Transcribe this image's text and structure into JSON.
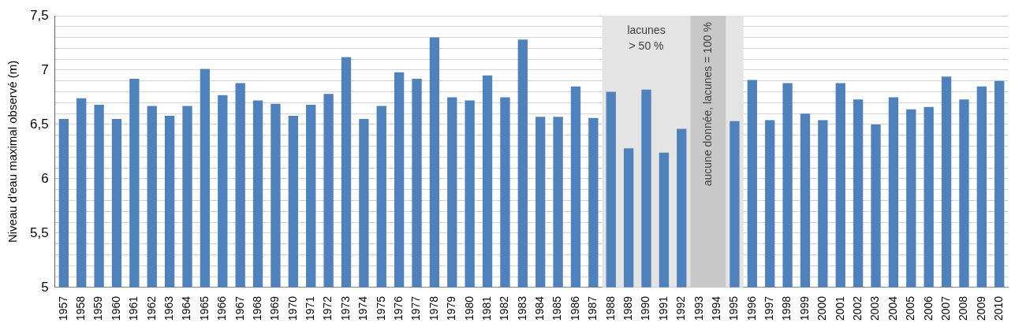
{
  "chart_data": {
    "type": "bar",
    "ylabel": "Niveau d'eau maximal observé (m)",
    "categories": [
      "1957",
      "1958",
      "1959",
      "1960",
      "1961",
      "1962",
      "1963",
      "1964",
      "1965",
      "1966",
      "1967",
      "1968",
      "1969",
      "1970",
      "1971",
      "1972",
      "1973",
      "1974",
      "1975",
      "1976",
      "1977",
      "1978",
      "1979",
      "1980",
      "1981",
      "1982",
      "1983",
      "1984",
      "1985",
      "1986",
      "1987",
      "1988",
      "1989",
      "1990",
      "1991",
      "1992",
      "1993",
      "1994",
      "1995",
      "1996",
      "1997",
      "1998",
      "1999",
      "2000",
      "2001",
      "2002",
      "2003",
      "2004",
      "2005",
      "2006",
      "2007",
      "2008",
      "2009",
      "2010"
    ],
    "values": [
      6.55,
      6.74,
      6.68,
      6.55,
      6.92,
      6.67,
      6.58,
      6.67,
      7.01,
      6.77,
      6.88,
      6.72,
      6.69,
      6.58,
      6.68,
      6.78,
      7.12,
      6.55,
      6.67,
      6.98,
      6.92,
      7.3,
      6.75,
      6.72,
      6.95,
      6.75,
      7.28,
      6.57,
      6.57,
      6.85,
      6.56,
      6.8,
      6.28,
      6.82,
      6.24,
      6.46,
      null,
      null,
      6.53,
      6.91,
      6.54,
      6.88,
      6.6,
      6.54,
      6.88,
      6.73,
      6.5,
      6.75,
      6.64,
      6.66,
      6.94,
      6.73,
      6.85,
      6.9
    ],
    "color": "#4f81bd",
    "ylim": [
      5,
      7.5
    ],
    "yticks": [
      {
        "value": 5,
        "label": "5"
      },
      {
        "value": 5.1,
        "label": null
      },
      {
        "value": 5.2,
        "label": null
      },
      {
        "value": 5.3,
        "label": null
      },
      {
        "value": 5.4,
        "label": null
      },
      {
        "value": 5.5,
        "label": "5,5"
      },
      {
        "value": 5.6,
        "label": null
      },
      {
        "value": 5.7,
        "label": null
      },
      {
        "value": 5.8,
        "label": null
      },
      {
        "value": 5.9,
        "label": null
      },
      {
        "value": 6,
        "label": "6"
      },
      {
        "value": 6.1,
        "label": null
      },
      {
        "value": 6.2,
        "label": null
      },
      {
        "value": 6.3,
        "label": null
      },
      {
        "value": 6.4,
        "label": null
      },
      {
        "value": 6.5,
        "label": "6,5"
      },
      {
        "value": 6.6,
        "label": null
      },
      {
        "value": 6.7,
        "label": null
      },
      {
        "value": 6.8,
        "label": null
      },
      {
        "value": 6.9,
        "label": null
      },
      {
        "value": 7,
        "label": "7"
      },
      {
        "value": 7.1,
        "label": null
      },
      {
        "value": 7.2,
        "label": null
      },
      {
        "value": 7.3,
        "label": null
      },
      {
        "value": 7.4,
        "label": null
      },
      {
        "value": 7.5,
        "label": "7,5"
      }
    ],
    "grid": "y",
    "bands": [
      {
        "axis": "x",
        "from": "1988",
        "to": "1995",
        "label": "lacunes > 50 %",
        "color": "#e4e4e4"
      },
      {
        "axis": "x",
        "from": "1993",
        "to": "1994",
        "label": "aucune donnée, lacunes = 100 %",
        "color": "#c8c8c8"
      }
    ]
  }
}
